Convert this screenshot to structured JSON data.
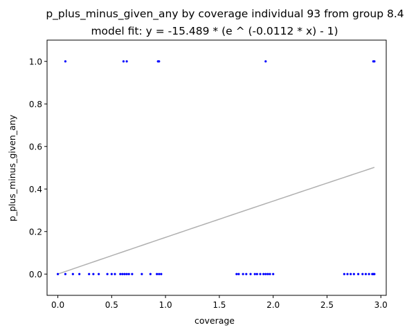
{
  "chart_data": {
    "type": "scatter",
    "title": "p_plus_minus_given_any by coverage individual 93 from group 8.4",
    "subtitle": "model fit: y = -15.489 * (e ^ (-0.0112 * x) - 1)",
    "xlabel": "coverage",
    "ylabel": "p_plus_minus_given_any",
    "xlim": [
      -0.1,
      3.05
    ],
    "ylim": [
      -0.1,
      1.1
    ],
    "xticks": [
      0.0,
      0.5,
      1.0,
      1.5,
      2.0,
      2.5,
      3.0
    ],
    "xtick_labels": [
      "0.0",
      "0.5",
      "1.0",
      "1.5",
      "2.0",
      "2.5",
      "3.0"
    ],
    "yticks": [
      0.0,
      0.2,
      0.4,
      0.6,
      0.8,
      1.0
    ],
    "ytick_labels": [
      "0.0",
      "0.2",
      "0.4",
      "0.6",
      "0.8",
      "1.0"
    ],
    "grid": false,
    "points_color": "#0000ff",
    "fit_color": "#b0b0b0",
    "series": [
      {
        "type": "scatter",
        "x": [
          0.0,
          0.07,
          0.14,
          0.2,
          0.29,
          0.33,
          0.38,
          0.46,
          0.5,
          0.53,
          0.58,
          0.6,
          0.62,
          0.64,
          0.66,
          0.69,
          0.78,
          0.86,
          0.92,
          0.94,
          0.96,
          1.66,
          1.68,
          1.72,
          1.75,
          1.79,
          1.83,
          1.85,
          1.88,
          1.91,
          1.93,
          1.95,
          1.97,
          2.0,
          2.66,
          2.69,
          2.72,
          2.75,
          2.79,
          2.83,
          2.86,
          2.89,
          2.92,
          2.93,
          2.94,
          0.07,
          0.61,
          0.64,
          0.93,
          0.94,
          1.93,
          2.93,
          2.94
        ],
        "y": [
          0,
          0,
          0,
          0,
          0,
          0,
          0,
          0,
          0,
          0,
          0,
          0,
          0,
          0,
          0,
          0,
          0,
          0,
          0,
          0,
          0,
          0,
          0,
          0,
          0,
          0,
          0,
          0,
          0,
          0,
          0,
          0,
          0,
          0,
          0,
          0,
          0,
          0,
          0,
          0,
          0,
          0,
          0,
          0,
          0,
          1,
          1,
          1,
          1,
          1,
          1,
          1,
          1
        ]
      },
      {
        "type": "line",
        "equation": "y = -15.489 * (e ^ (-0.0112 * x) - 1)",
        "a": -15.489,
        "b": -0.0112,
        "x_range": [
          0.0,
          2.94
        ]
      }
    ]
  }
}
